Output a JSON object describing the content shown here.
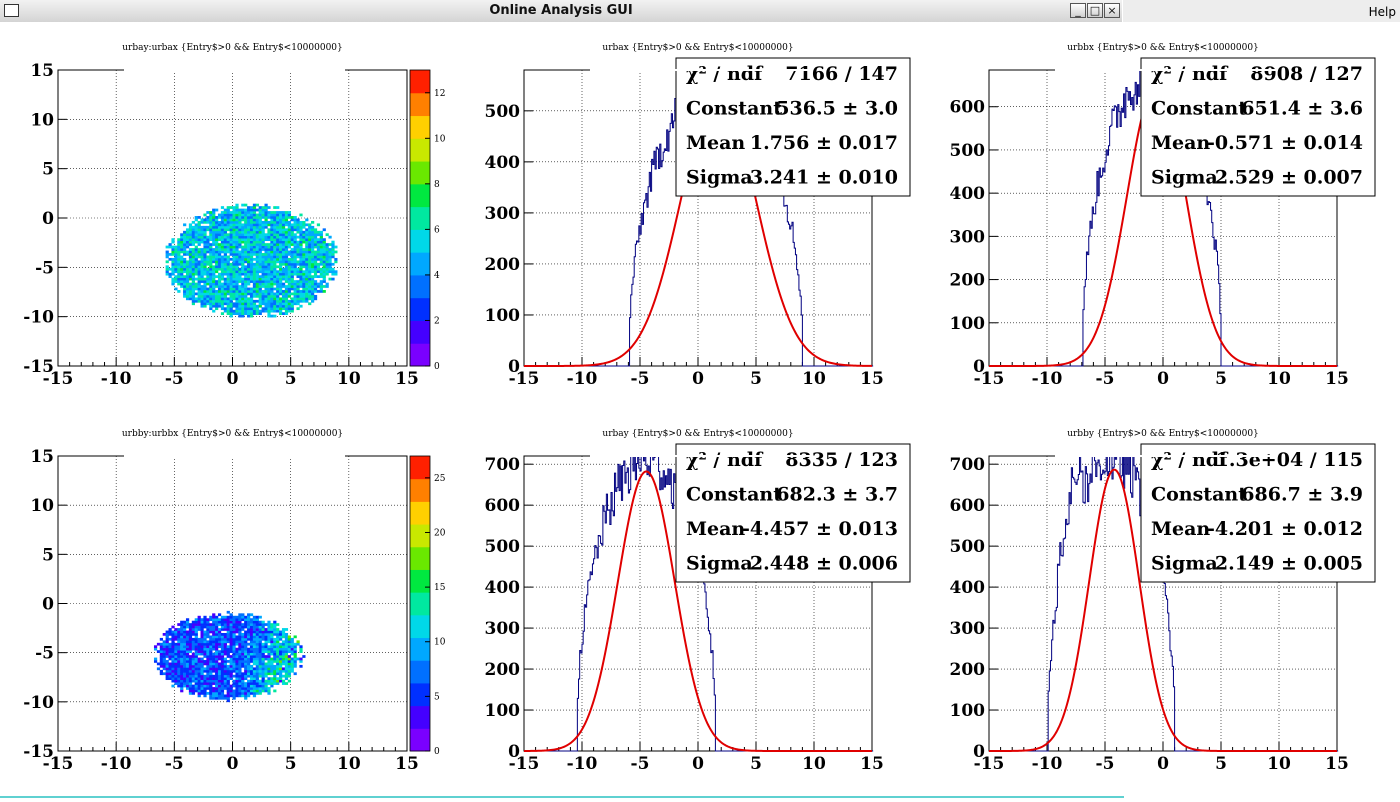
{
  "window": {
    "title": "Online Analysis GUI",
    "help_label": "Help",
    "buttons": {
      "minimize": "_",
      "maximize": "□",
      "close": "×"
    }
  },
  "colors": {
    "fit": "#e00000",
    "hist": "#000080",
    "grid": "#000000",
    "frame": "#000000"
  },
  "pads": [
    {
      "id": "pad-1",
      "title": "urbay:urbax {Entry$>0 && Entry$<10000000}",
      "chart_data": {
        "type": "heatmap",
        "x_ticks": [
          "-15",
          "-10",
          "-5",
          "0",
          "5",
          "10",
          "15"
        ],
        "y_ticks": [
          "15",
          "10",
          "5",
          "0",
          "-5",
          "-10",
          "-15"
        ],
        "xlim": [
          -15,
          15
        ],
        "ylim": [
          -15,
          15
        ],
        "color_scale": [
          "0",
          "2",
          "4",
          "6",
          "8",
          "10",
          "12"
        ],
        "color_max": 13,
        "blob": {
          "cx": 1.5,
          "cy": -4.5,
          "rx": 7.5,
          "ry": 5.8
        }
      }
    },
    {
      "id": "pad-2",
      "title": "urbax {Entry$>0 && Entry$<10000000}",
      "chart_data": {
        "type": "line",
        "x_ticks": [
          "-15",
          "-10",
          "-5",
          "0",
          "5",
          "10",
          "15"
        ],
        "y_ticks": [
          "0",
          "100",
          "200",
          "300",
          "400",
          "500"
        ],
        "xlim": [
          -15,
          15
        ],
        "ylim": [
          0,
          580
        ],
        "fit": {
          "constant": 536.5,
          "mean": 1.756,
          "sigma": 3.241
        },
        "hist_range": [
          -6,
          9
        ]
      },
      "stats": [
        {
          "label": "χ² / ndf",
          "value": "7166 / 147"
        },
        {
          "label": "Constant",
          "value": "536.5 ± 3.0"
        },
        {
          "label": "Mean",
          "value": "1.756 ± 0.017"
        },
        {
          "label": "Sigma",
          "value": "3.241 ± 0.010"
        }
      ]
    },
    {
      "id": "pad-3",
      "title": "urbbx {Entry$>0 && Entry$<10000000}",
      "chart_data": {
        "type": "line",
        "x_ticks": [
          "-15",
          "-10",
          "-5",
          "0",
          "5",
          "10",
          "15"
        ],
        "y_ticks": [
          "0",
          "100",
          "200",
          "300",
          "400",
          "500",
          "600"
        ],
        "xlim": [
          -15,
          15
        ],
        "ylim": [
          0,
          685
        ],
        "fit": {
          "constant": 651.4,
          "mean": -0.571,
          "sigma": 2.529
        },
        "hist_range": [
          -7,
          5
        ]
      },
      "stats": [
        {
          "label": "χ² / ndf",
          "value": "8908 / 127"
        },
        {
          "label": "Constant",
          "value": "651.4 ± 3.6"
        },
        {
          "label": "Mean",
          "value": "-0.571 ± 0.014"
        },
        {
          "label": "Sigma",
          "value": "2.529 ± 0.007"
        }
      ]
    },
    {
      "id": "pad-4",
      "title": "urbby:urbbx {Entry$>0 && Entry$<10000000}",
      "chart_data": {
        "type": "heatmap",
        "x_ticks": [
          "-15",
          "-10",
          "-5",
          "0",
          "5",
          "10",
          "15"
        ],
        "y_ticks": [
          "15",
          "10",
          "5",
          "0",
          "-5",
          "-10",
          "-15"
        ],
        "xlim": [
          -15,
          15
        ],
        "ylim": [
          -15,
          15
        ],
        "color_scale": [
          "0",
          "5",
          "10",
          "15",
          "20",
          "25"
        ],
        "color_max": 27,
        "blob": {
          "cx": -0.5,
          "cy": -5.5,
          "rx": 6.5,
          "ry": 4.5
        }
      }
    },
    {
      "id": "pad-5",
      "title": "urbay {Entry$>0 && Entry$<10000000}",
      "chart_data": {
        "type": "line",
        "x_ticks": [
          "-15",
          "-10",
          "-5",
          "0",
          "5",
          "10",
          "15"
        ],
        "y_ticks": [
          "0",
          "100",
          "200",
          "300",
          "400",
          "500",
          "600",
          "700"
        ],
        "xlim": [
          -15,
          15
        ],
        "ylim": [
          0,
          720
        ],
        "fit": {
          "constant": 682.3,
          "mean": -4.457,
          "sigma": 2.448
        },
        "hist_range": [
          -10.5,
          1.5
        ]
      },
      "stats": [
        {
          "label": "χ² / ndf",
          "value": "8335 / 123"
        },
        {
          "label": "Constant",
          "value": "682.3 ± 3.7"
        },
        {
          "label": "Mean",
          "value": "-4.457 ± 0.013"
        },
        {
          "label": "Sigma",
          "value": "2.448 ± 0.006"
        }
      ]
    },
    {
      "id": "pad-6",
      "title": "urbby {Entry$>0 && Entry$<10000000}",
      "chart_data": {
        "type": "line",
        "x_ticks": [
          "-15",
          "-10",
          "-5",
          "0",
          "5",
          "10",
          "15"
        ],
        "y_ticks": [
          "0",
          "100",
          "200",
          "300",
          "400",
          "500",
          "600",
          "700"
        ],
        "xlim": [
          -15,
          15
        ],
        "ylim": [
          0,
          720
        ],
        "fit": {
          "constant": 686.7,
          "mean": -4.201,
          "sigma": 2.149
        },
        "hist_range": [
          -10,
          1
        ]
      },
      "stats": [
        {
          "label": "χ² / ndf",
          "value": "1.3e+04 / 115"
        },
        {
          "label": "Constant",
          "value": "686.7 ± 3.9"
        },
        {
          "label": "Mean",
          "value": "-4.201 ± 0.012"
        },
        {
          "label": "Sigma",
          "value": "2.149 ± 0.005"
        }
      ]
    }
  ]
}
